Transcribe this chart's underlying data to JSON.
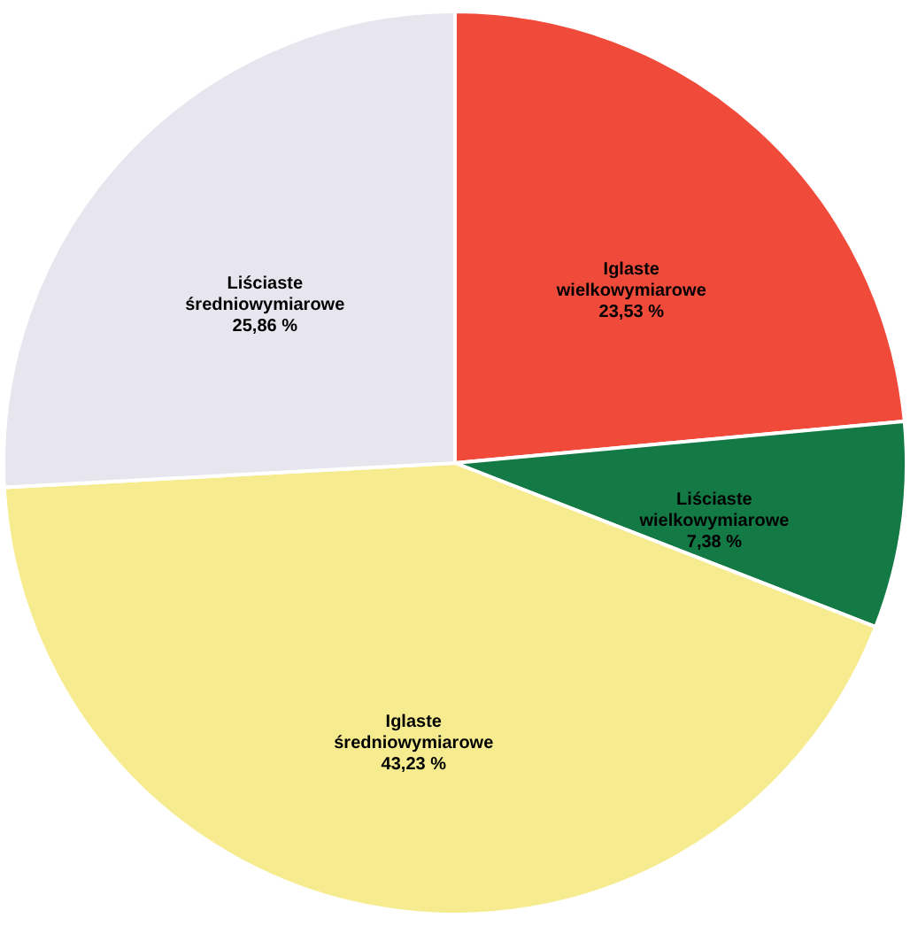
{
  "chart_data": {
    "type": "pie",
    "categories": [
      "Iglaste wielkowymiarowe",
      "Liściaste wielkowymiarowe",
      "Iglaste średniowymiarowe",
      "Liściaste średniowymiarowe"
    ],
    "values": [
      23.53,
      7.38,
      43.23,
      25.86
    ],
    "value_labels": [
      "23,53 %",
      "7,38 %",
      "43,23 %",
      "25,86 %"
    ],
    "colors": [
      "#f04a3a",
      "#137a46",
      "#f6ec8f",
      "#e7e5ee"
    ],
    "legend": false
  }
}
